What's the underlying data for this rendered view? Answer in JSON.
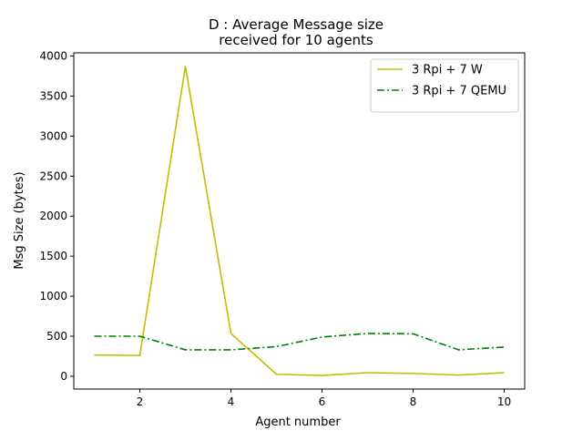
{
  "chart_data": {
    "type": "line",
    "title_line1": "D : Average Message size",
    "title_line2": "received for 10 agents",
    "xlabel": "Agent number",
    "ylabel": "Msg Size (bytes)",
    "xlim": [
      0.55,
      10.45
    ],
    "ylim": [
      -160,
      4040
    ],
    "xticks": [
      2,
      4,
      6,
      8,
      10
    ],
    "yticks": [
      0,
      500,
      1000,
      1500,
      2000,
      2500,
      3000,
      3500,
      4000
    ],
    "grid": false,
    "legend_position": "top-right",
    "x": [
      1,
      2,
      3,
      4,
      5,
      6,
      7,
      8,
      9,
      10
    ],
    "series": [
      {
        "name": "3 Rpi + 7 W",
        "color": "#bfbf00",
        "style": "solid",
        "values": [
          265,
          260,
          3870,
          535,
          25,
          10,
          45,
          35,
          15,
          45
        ]
      },
      {
        "name": "3 Rpi + 7 QEMU",
        "color": "#008000",
        "style": "dashdot",
        "values": [
          500,
          500,
          330,
          330,
          370,
          490,
          535,
          530,
          330,
          365
        ]
      }
    ]
  }
}
